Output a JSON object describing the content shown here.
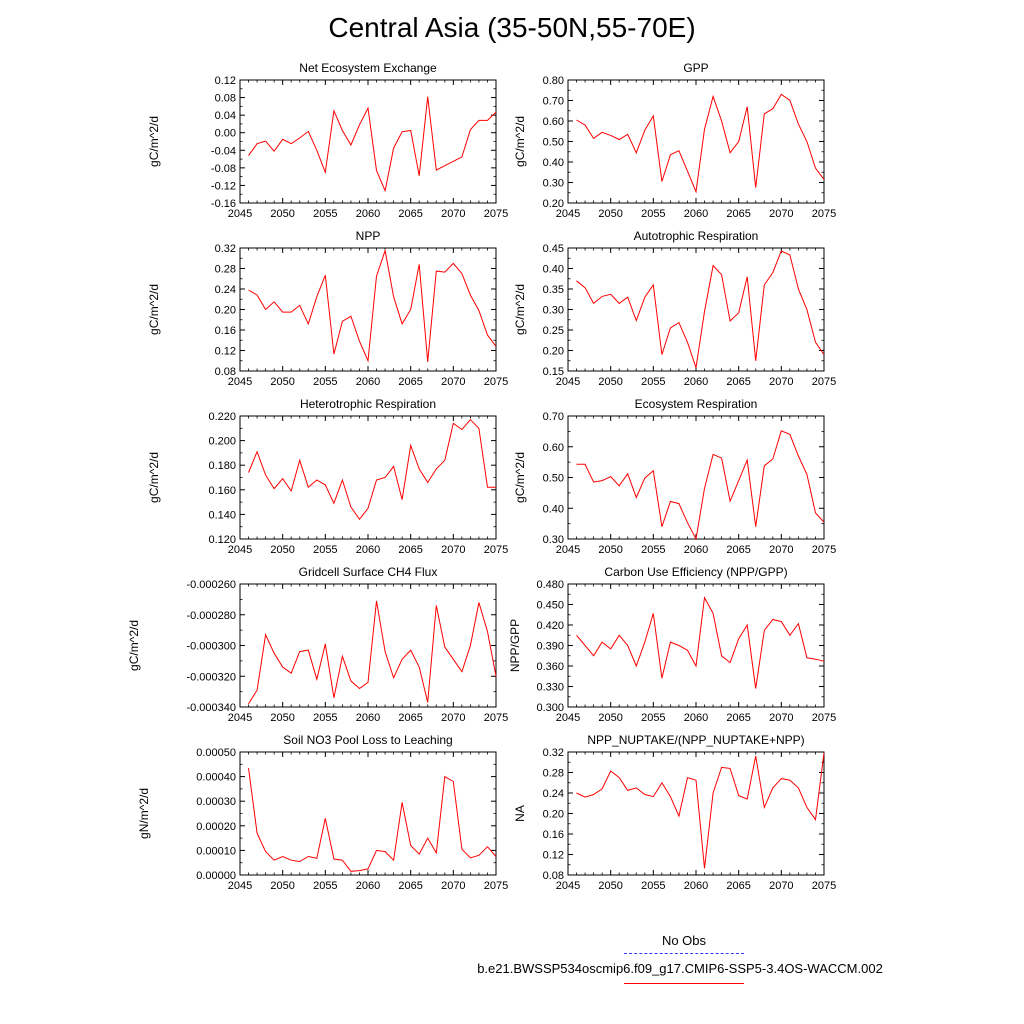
{
  "title": "Central Asia (35-50N,55-70E)",
  "legend": {
    "obs_label": "No Obs",
    "model_label": "b.e21.BWSSP534oscmip6.f09_g17.CMIP6-SSP5-3.4OS-WACCM.002",
    "colors": {
      "obs": "#3a3aff",
      "model": "#ff0000"
    }
  },
  "chart_data": [
    {
      "type": "line",
      "title": "Net Ecosystem Exchange",
      "ylabel": "gC/m^2/d",
      "xlim": [
        2045,
        2075
      ],
      "ylim": [
        -0.16,
        0.12
      ],
      "xticks": [
        "2045",
        "2050",
        "2055",
        "2060",
        "2065",
        "2070",
        "2075"
      ],
      "yticks": [
        "-0.16",
        "-0.12",
        "-0.08",
        "-0.04",
        "0.00",
        "0.04",
        "0.08",
        "0.12"
      ],
      "x": [
        2046,
        2047,
        2048,
        2049,
        2050,
        2051,
        2052,
        2053,
        2054,
        2055,
        2056,
        2057,
        2058,
        2059,
        2060,
        2061,
        2062,
        2063,
        2064,
        2065,
        2066,
        2067,
        2068,
        2069,
        2070,
        2071,
        2072,
        2073,
        2074,
        2075
      ],
      "values": [
        -0.052,
        -0.025,
        -0.019,
        -0.042,
        -0.015,
        -0.025,
        -0.012,
        0.003,
        -0.04,
        -0.09,
        0.05,
        0.005,
        -0.028,
        0.018,
        0.056,
        -0.086,
        -0.132,
        -0.035,
        0.002,
        0.005,
        -0.098,
        0.082,
        -0.085,
        -0.075,
        -0.065,
        -0.055,
        0.007,
        0.028,
        0.028,
        0.047
      ],
      "color": "#ff0000"
    },
    {
      "type": "line",
      "title": "GPP",
      "ylabel": "gC/m^2/d",
      "xlim": [
        2045,
        2075
      ],
      "ylim": [
        0.2,
        0.8
      ],
      "xticks": [
        "2045",
        "2050",
        "2055",
        "2060",
        "2065",
        "2070",
        "2075"
      ],
      "yticks": [
        "0.20",
        "0.30",
        "0.40",
        "0.50",
        "0.60",
        "0.70",
        "0.80"
      ],
      "x": [
        2046,
        2047,
        2048,
        2049,
        2050,
        2051,
        2052,
        2053,
        2054,
        2055,
        2056,
        2057,
        2058,
        2059,
        2060,
        2061,
        2062,
        2063,
        2064,
        2065,
        2066,
        2067,
        2068,
        2069,
        2070,
        2071,
        2072,
        2073,
        2074,
        2075
      ],
      "values": [
        0.605,
        0.58,
        0.515,
        0.545,
        0.53,
        0.51,
        0.535,
        0.445,
        0.555,
        0.625,
        0.305,
        0.435,
        0.455,
        0.355,
        0.255,
        0.56,
        0.72,
        0.6,
        0.445,
        0.5,
        0.67,
        0.275,
        0.635,
        0.66,
        0.73,
        0.7,
        0.585,
        0.5,
        0.37,
        0.315
      ],
      "color": "#ff0000"
    },
    {
      "type": "line",
      "title": "NPP",
      "ylabel": "gC/m^2/d",
      "xlim": [
        2045,
        2075
      ],
      "ylim": [
        0.08,
        0.32
      ],
      "xticks": [
        "2045",
        "2050",
        "2055",
        "2060",
        "2065",
        "2070",
        "2075"
      ],
      "yticks": [
        "0.08",
        "0.12",
        "0.16",
        "0.20",
        "0.24",
        "0.28",
        "0.32"
      ],
      "x": [
        2046,
        2047,
        2048,
        2049,
        2050,
        2051,
        2052,
        2053,
        2054,
        2055,
        2056,
        2057,
        2058,
        2059,
        2060,
        2061,
        2062,
        2063,
        2064,
        2065,
        2066,
        2067,
        2068,
        2069,
        2070,
        2071,
        2072,
        2073,
        2074,
        2075
      ],
      "values": [
        0.238,
        0.228,
        0.2,
        0.215,
        0.195,
        0.195,
        0.208,
        0.172,
        0.225,
        0.267,
        0.113,
        0.177,
        0.187,
        0.138,
        0.1,
        0.265,
        0.315,
        0.225,
        0.172,
        0.2,
        0.288,
        0.098,
        0.275,
        0.273,
        0.29,
        0.27,
        0.228,
        0.198,
        0.15,
        0.128
      ],
      "color": "#ff0000"
    },
    {
      "type": "line",
      "title": "Autotrophic Respiration",
      "ylabel": "gC/m^2/d",
      "xlim": [
        2045,
        2075
      ],
      "ylim": [
        0.15,
        0.45
      ],
      "xticks": [
        "2045",
        "2050",
        "2055",
        "2060",
        "2065",
        "2070",
        "2075"
      ],
      "yticks": [
        "0.15",
        "0.20",
        "0.25",
        "0.30",
        "0.35",
        "0.40",
        "0.45"
      ],
      "x": [
        2046,
        2047,
        2048,
        2049,
        2050,
        2051,
        2052,
        2053,
        2054,
        2055,
        2056,
        2057,
        2058,
        2059,
        2060,
        2061,
        2062,
        2063,
        2064,
        2065,
        2066,
        2067,
        2068,
        2069,
        2070,
        2071,
        2072,
        2073,
        2074,
        2075
      ],
      "values": [
        0.37,
        0.353,
        0.315,
        0.332,
        0.337,
        0.315,
        0.33,
        0.273,
        0.33,
        0.36,
        0.19,
        0.255,
        0.268,
        0.22,
        0.158,
        0.295,
        0.407,
        0.385,
        0.272,
        0.292,
        0.38,
        0.175,
        0.36,
        0.39,
        0.443,
        0.433,
        0.35,
        0.3,
        0.22,
        0.19
      ],
      "color": "#ff0000"
    },
    {
      "type": "line",
      "title": "Heterotrophic Respiration",
      "ylabel": "gC/m^2/d",
      "xlim": [
        2045,
        2075
      ],
      "ylim": [
        0.12,
        0.22
      ],
      "xticks": [
        "2045",
        "2050",
        "2055",
        "2060",
        "2065",
        "2070",
        "2075"
      ],
      "yticks": [
        "0.120",
        "0.140",
        "0.160",
        "0.180",
        "0.200",
        "0.220"
      ],
      "x": [
        2046,
        2047,
        2048,
        2049,
        2050,
        2051,
        2052,
        2053,
        2054,
        2055,
        2056,
        2057,
        2058,
        2059,
        2060,
        2061,
        2062,
        2063,
        2064,
        2065,
        2066,
        2067,
        2068,
        2069,
        2070,
        2071,
        2072,
        2073,
        2074,
        2075
      ],
      "values": [
        0.174,
        0.191,
        0.172,
        0.161,
        0.169,
        0.159,
        0.184,
        0.162,
        0.168,
        0.164,
        0.149,
        0.168,
        0.146,
        0.136,
        0.145,
        0.168,
        0.17,
        0.179,
        0.152,
        0.196,
        0.177,
        0.166,
        0.177,
        0.184,
        0.214,
        0.209,
        0.217,
        0.21,
        0.162,
        0.162
      ],
      "color": "#ff0000"
    },
    {
      "type": "line",
      "title": "Ecosystem Respiration",
      "ylabel": "gC/m^2/d",
      "xlim": [
        2045,
        2075
      ],
      "ylim": [
        0.3,
        0.7
      ],
      "xticks": [
        "2045",
        "2050",
        "2055",
        "2060",
        "2065",
        "2070",
        "2075"
      ],
      "yticks": [
        "0.30",
        "0.40",
        "0.50",
        "0.60",
        "0.70"
      ],
      "x": [
        2046,
        2047,
        2048,
        2049,
        2050,
        2051,
        2052,
        2053,
        2054,
        2055,
        2056,
        2057,
        2058,
        2059,
        2060,
        2061,
        2062,
        2063,
        2064,
        2065,
        2066,
        2067,
        2068,
        2069,
        2070,
        2071,
        2072,
        2073,
        2074,
        2075
      ],
      "values": [
        0.543,
        0.543,
        0.485,
        0.49,
        0.503,
        0.473,
        0.512,
        0.435,
        0.498,
        0.522,
        0.34,
        0.422,
        0.415,
        0.353,
        0.3,
        0.465,
        0.575,
        0.563,
        0.423,
        0.49,
        0.557,
        0.34,
        0.538,
        0.56,
        0.652,
        0.64,
        0.57,
        0.51,
        0.385,
        0.355
      ],
      "color": "#ff0000"
    },
    {
      "type": "line",
      "title": "Gridcell Surface CH4 Flux",
      "ylabel": "gC/m^2/d",
      "xlim": [
        2045,
        2075
      ],
      "ylim": [
        -0.00034,
        -0.00026
      ],
      "xticks": [
        "2045",
        "2050",
        "2055",
        "2060",
        "2065",
        "2070",
        "2075"
      ],
      "yticks": [
        "-0.000340",
        "-0.000320",
        "-0.000300",
        "-0.000280",
        "-0.000260"
      ],
      "x": [
        2046,
        2047,
        2048,
        2049,
        2050,
        2051,
        2052,
        2053,
        2054,
        2055,
        2056,
        2057,
        2058,
        2059,
        2060,
        2061,
        2062,
        2063,
        2064,
        2065,
        2066,
        2067,
        2068,
        2069,
        2070,
        2071,
        2072,
        2073,
        2074,
        2075
      ],
      "values": [
        -0.000338,
        -0.000329,
        -0.000293,
        -0.000305,
        -0.000314,
        -0.000318,
        -0.000304,
        -0.000303,
        -0.000322,
        -0.000299,
        -0.000334,
        -0.000307,
        -0.000323,
        -0.000328,
        -0.000324,
        -0.000271,
        -0.000304,
        -0.000321,
        -0.000309,
        -0.000303,
        -0.000314,
        -0.000337,
        -0.000274,
        -0.000301,
        -0.000309,
        -0.000317,
        -0.0003,
        -0.000272,
        -0.000291,
        -0.00032
      ],
      "color": "#ff0000"
    },
    {
      "type": "line",
      "title": "Carbon Use Efficiency (NPP/GPP)",
      "ylabel": "NPP/GPP",
      "xlim": [
        2045,
        2075
      ],
      "ylim": [
        0.3,
        0.48
      ],
      "xticks": [
        "2045",
        "2050",
        "2055",
        "2060",
        "2065",
        "2070",
        "2075"
      ],
      "yticks": [
        "0.300",
        "0.330",
        "0.360",
        "0.390",
        "0.420",
        "0.450",
        "0.480"
      ],
      "x": [
        2046,
        2047,
        2048,
        2049,
        2050,
        2051,
        2052,
        2053,
        2054,
        2055,
        2056,
        2057,
        2058,
        2059,
        2060,
        2061,
        2062,
        2063,
        2064,
        2065,
        2066,
        2067,
        2068,
        2069,
        2070,
        2071,
        2072,
        2073,
        2074,
        2075
      ],
      "values": [
        0.405,
        0.39,
        0.375,
        0.395,
        0.385,
        0.405,
        0.39,
        0.36,
        0.395,
        0.437,
        0.342,
        0.395,
        0.39,
        0.383,
        0.36,
        0.46,
        0.437,
        0.375,
        0.365,
        0.4,
        0.42,
        0.327,
        0.412,
        0.428,
        0.425,
        0.405,
        0.422,
        0.372,
        0.37,
        0.367
      ],
      "color": "#ff0000"
    },
    {
      "type": "line",
      "title": "Soil NO3 Pool Loss to Leaching",
      "ylabel": "gN/m^2/d",
      "xlim": [
        2045,
        2075
      ],
      "ylim": [
        0,
        0.0005
      ],
      "xticks": [
        "2045",
        "2050",
        "2055",
        "2060",
        "2065",
        "2070",
        "2075"
      ],
      "yticks": [
        "0.00000",
        "0.00010",
        "0.00020",
        "0.00030",
        "0.00040",
        "0.00050"
      ],
      "x": [
        2046,
        2047,
        2048,
        2049,
        2050,
        2051,
        2052,
        2053,
        2054,
        2055,
        2056,
        2057,
        2058,
        2059,
        2060,
        2061,
        2062,
        2063,
        2064,
        2065,
        2066,
        2067,
        2068,
        2069,
        2070,
        2071,
        2072,
        2073,
        2074,
        2075
      ],
      "values": [
        0.000435,
        0.00017,
        9.5e-05,
        6e-05,
        7.5e-05,
        6e-05,
        5.5e-05,
        7.5e-05,
        6.8e-05,
        0.00023,
        6.5e-05,
        6e-05,
        1.5e-05,
        1.8e-05,
        2.5e-05,
        0.0001,
        9.5e-05,
        6e-05,
        0.000295,
        0.00012,
        8.5e-05,
        0.00015,
        9e-05,
        0.0004,
        0.00038,
        0.000105,
        7e-05,
        8e-05,
        0.000115,
        7.5e-05
      ],
      "color": "#ff0000"
    },
    {
      "type": "line",
      "title": "NPP_NUPTAKE/(NPP_NUPTAKE+NPP)",
      "ylabel": "NA",
      "xlim": [
        2045,
        2075
      ],
      "ylim": [
        0.08,
        0.32
      ],
      "xticks": [
        "2045",
        "2050",
        "2055",
        "2060",
        "2065",
        "2070",
        "2075"
      ],
      "yticks": [
        "0.08",
        "0.12",
        "0.16",
        "0.20",
        "0.24",
        "0.28",
        "0.32"
      ],
      "x": [
        2046,
        2047,
        2048,
        2049,
        2050,
        2051,
        2052,
        2053,
        2054,
        2055,
        2056,
        2057,
        2058,
        2059,
        2060,
        2061,
        2062,
        2063,
        2064,
        2065,
        2066,
        2067,
        2068,
        2069,
        2070,
        2071,
        2072,
        2073,
        2074,
        2075
      ],
      "values": [
        0.24,
        0.232,
        0.237,
        0.248,
        0.283,
        0.27,
        0.245,
        0.25,
        0.237,
        0.233,
        0.26,
        0.233,
        0.195,
        0.27,
        0.265,
        0.093,
        0.24,
        0.29,
        0.288,
        0.235,
        0.228,
        0.312,
        0.212,
        0.25,
        0.268,
        0.265,
        0.25,
        0.212,
        0.188,
        0.318
      ],
      "color": "#ff0000"
    }
  ]
}
